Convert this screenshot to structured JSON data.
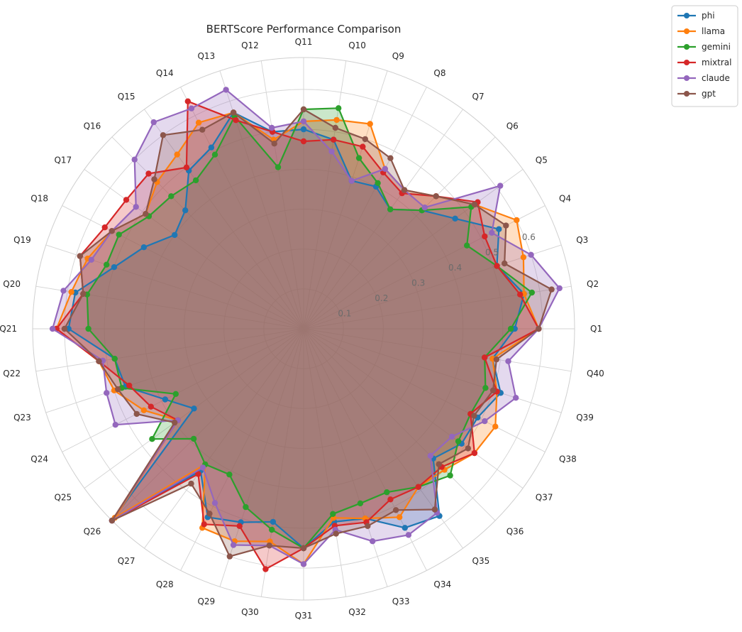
{
  "chart_data": {
    "type": "radar",
    "title": "BERTScore Performance Comparison",
    "categories": [
      "Q1",
      "Q2",
      "Q3",
      "Q4",
      "Q5",
      "Q6",
      "Q7",
      "Q8",
      "Q9",
      "Q10",
      "Q11",
      "Q12",
      "Q13",
      "Q14",
      "Q15",
      "Q16",
      "Q17",
      "Q18",
      "Q19",
      "Q20",
      "Q21",
      "Q22",
      "Q23",
      "Q24",
      "Q25",
      "Q26",
      "Q27",
      "Q28",
      "Q29",
      "Q30",
      "Q31",
      "Q32",
      "Q33",
      "Q34",
      "Q35",
      "Q36",
      "Q37",
      "Q38",
      "Q39",
      "Q40"
    ],
    "r_ticks": [
      "0.1",
      "0.2",
      "0.3",
      "0.4",
      "0.5",
      "0.6"
    ],
    "r_tick_values": [
      0.1,
      0.2,
      0.3,
      0.4,
      0.5,
      0.6
    ],
    "rlim": [
      0,
      0.68
    ],
    "grid": true,
    "legend_position": "top-right, outside plot",
    "series": [
      {
        "name": "phi",
        "color": "#1f77b4",
        "values": [
          0.53,
          0.56,
          0.51,
          0.55,
          0.47,
          0.42,
          0.37,
          0.4,
          0.39,
          0.48,
          0.5,
          0.5,
          0.57,
          0.51,
          0.49,
          0.42,
          0.4,
          0.45,
          0.5,
          0.58,
          0.59,
          0.48,
          0.47,
          0.39,
          0.34,
          0.68,
          0.44,
          0.53,
          0.51,
          0.49,
          0.55,
          0.49,
          0.5,
          0.56,
          0.58,
          0.46,
          0.49,
          0.49,
          0.52,
          0.48
        ]
      },
      {
        "name": "llama",
        "color": "#ff7f0e",
        "values": [
          0.59,
          0.56,
          0.58,
          0.6,
          0.53,
          0.47,
          0.43,
          0.45,
          0.54,
          0.53,
          0.52,
          0.48,
          0.57,
          0.58,
          0.54,
          0.52,
          0.49,
          0.54,
          0.57,
          0.59,
          0.62,
          0.52,
          0.5,
          0.45,
          0.39,
          0.67,
          0.42,
          0.56,
          0.56,
          0.54,
          0.59,
          0.48,
          0.5,
          0.53,
          0.49,
          0.5,
          0.53,
          0.54,
          0.51,
          0.48
        ]
      },
      {
        "name": "gemini",
        "color": "#2ca02c",
        "values": [
          0.52,
          0.58,
          0.51,
          0.46,
          0.52,
          0.42,
          0.37,
          0.41,
          0.45,
          0.56,
          0.55,
          0.41,
          0.56,
          0.49,
          0.46,
          0.47,
          0.48,
          0.52,
          0.52,
          0.55,
          0.54,
          0.48,
          0.48,
          0.36,
          0.47,
          0.39,
          0.42,
          0.41,
          0.47,
          0.51,
          0.55,
          0.47,
          0.46,
          0.46,
          0.49,
          0.52,
          0.48,
          0.47,
          0.48,
          0.46
        ]
      },
      {
        "name": "mixtral",
        "color": "#d62728",
        "values": [
          0.59,
          0.55,
          0.51,
          0.51,
          0.54,
          0.47,
          0.42,
          0.44,
          0.48,
          0.48,
          0.47,
          0.5,
          0.55,
          0.64,
          0.5,
          0.55,
          0.55,
          0.56,
          0.59,
          0.56,
          0.62,
          0.52,
          0.46,
          0.43,
          0.39,
          0.68,
          0.45,
          0.55,
          0.52,
          0.61,
          0.55,
          0.5,
          0.51,
          0.48,
          0.49,
          0.49,
          0.53,
          0.47,
          0.51,
          0.46
        ]
      },
      {
        "name": "claude",
        "color": "#9467bd",
        "values": [
          0.59,
          0.65,
          0.6,
          0.53,
          0.61,
          0.43,
          0.43,
          0.45,
          0.39,
          0.45,
          0.52,
          0.51,
          0.63,
          0.62,
          0.64,
          0.6,
          0.52,
          0.54,
          0.56,
          0.61,
          0.63,
          0.51,
          0.52,
          0.53,
          0.39,
          0.68,
          0.43,
          0.49,
          0.57,
          0.55,
          0.59,
          0.51,
          0.56,
          0.58,
          0.57,
          0.45,
          0.46,
          0.51,
          0.56,
          0.52
        ]
      },
      {
        "name": "gpt",
        "color": "#8c564b",
        "values": [
          0.59,
          0.63,
          0.53,
          0.57,
          0.53,
          0.47,
          0.43,
          0.48,
          0.5,
          0.51,
          0.55,
          0.47,
          0.57,
          0.56,
          0.6,
          0.53,
          0.49,
          0.54,
          0.59,
          0.56,
          0.6,
          0.52,
          0.49,
          0.47,
          0.4,
          0.68,
          0.48,
          0.52,
          0.6,
          0.55,
          0.55,
          0.52,
          0.52,
          0.51,
          0.56,
          0.48,
          0.51,
          0.48,
          0.5,
          0.49
        ]
      }
    ]
  }
}
